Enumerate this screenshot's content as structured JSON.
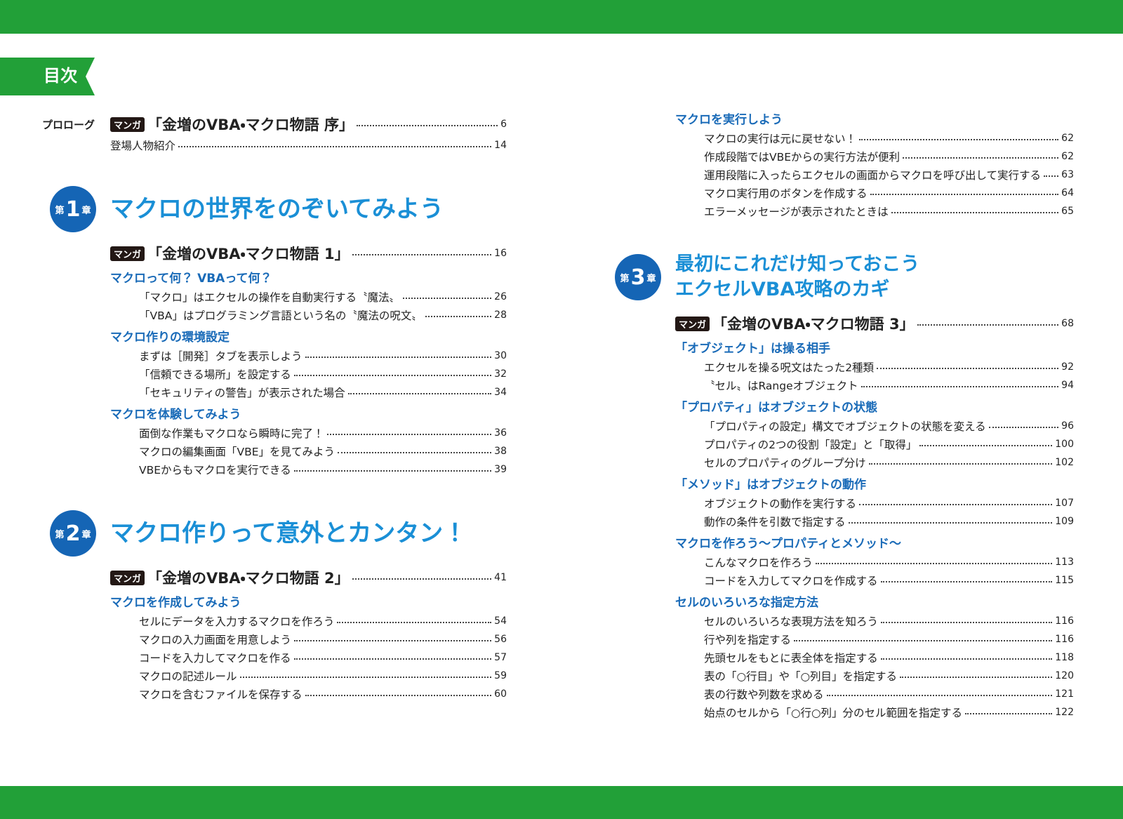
{
  "header": {
    "title": "目次"
  },
  "left_page": {
    "prologue": {
      "label": "プロローグ",
      "entries": [
        {
          "badge": "マンガ",
          "title": "「金増のVBA・マクロ物語 序」",
          "page": 6
        },
        {
          "title": "登場人物紹介",
          "page": 14
        }
      ]
    },
    "chapters": [
      {
        "prefix": "第",
        "number": "1",
        "suffix": "章",
        "title_lines": [
          "マクロの世界をのぞいてみよう"
        ],
        "manga": {
          "badge": "マンガ",
          "title": "「金増のVBA・マクロ物語 1」",
          "page": 16
        },
        "sections": [
          {
            "heading": "マクロって何？ VBAって何？",
            "entries": [
              {
                "title": "「マクロ」はエクセルの操作を自動実行する〝魔法〟",
                "page": 26
              },
              {
                "title": "「VBA」はプログラミング言語という名の〝魔法の呪文〟",
                "page": 28
              }
            ]
          },
          {
            "heading": "マクロ作りの環境設定",
            "entries": [
              {
                "title": "まずは［開発］タブを表示しよう",
                "page": 30
              },
              {
                "title": "「信頼できる場所」を設定する",
                "page": 32
              },
              {
                "title": "「セキュリティの警告」が表示された場合",
                "page": 34
              }
            ]
          },
          {
            "heading": "マクロを体験してみよう",
            "entries": [
              {
                "title": "面倒な作業もマクロなら瞬時に完了！",
                "page": 36
              },
              {
                "title": "マクロの編集画面「VBE」を見てみよう",
                "page": 38
              },
              {
                "title": "VBEからもマクロを実行できる",
                "page": 39
              }
            ]
          }
        ]
      },
      {
        "prefix": "第",
        "number": "2",
        "suffix": "章",
        "title_lines": [
          "マクロ作りって意外とカンタン！"
        ],
        "manga": {
          "badge": "マンガ",
          "title": "「金増のVBA・マクロ物語 2」",
          "page": 41
        },
        "sections": [
          {
            "heading": "マクロを作成してみよう",
            "entries": [
              {
                "title": "セルにデータを入力するマクロを作ろう",
                "page": 54
              },
              {
                "title": "マクロの入力画面を用意しよう",
                "page": 56
              },
              {
                "title": "コードを入力してマクロを作る",
                "page": 57
              },
              {
                "title": "マクロの記述ルール",
                "page": 59
              },
              {
                "title": "マクロを含むファイルを保存する",
                "page": 60
              }
            ]
          }
        ]
      }
    ]
  },
  "right_page": {
    "continued_sections": [
      {
        "heading": "マクロを実行しよう",
        "entries": [
          {
            "title": "マクロの実行は元に戻せない！",
            "page": 62
          },
          {
            "title": "作成段階ではVBEからの実行方法が便利",
            "page": 62
          },
          {
            "title": "運用段階に入ったらエクセルの画面からマクロを呼び出して実行する",
            "page": 63
          },
          {
            "title": "マクロ実行用のボタンを作成する",
            "page": 64
          },
          {
            "title": "エラーメッセージが表示されたときは",
            "page": 65
          }
        ]
      }
    ],
    "chapters": [
      {
        "prefix": "第",
        "number": "3",
        "suffix": "章",
        "title_lines": [
          "最初にこれだけ知っておこう",
          "エクセルVBA攻略のカギ"
        ],
        "manga": {
          "badge": "マンガ",
          "title": "「金増のVBA・マクロ物語 3」",
          "page": 68
        },
        "sections": [
          {
            "heading": "「オブジェクト」は操る相手",
            "entries": [
              {
                "title": "エクセルを操る呪文はたった2種類",
                "page": 92
              },
              {
                "title": "〝セル〟はRangeオブジェクト",
                "page": 94
              }
            ]
          },
          {
            "heading": "「プロパティ」はオブジェクトの状態",
            "entries": [
              {
                "title": "「プロパティの設定」構文でオブジェクトの状態を変える",
                "page": 96
              },
              {
                "title": "プロパティの2つの役割「設定」と「取得」",
                "page": 100
              },
              {
                "title": "セルのプロパティのグループ分け",
                "page": 102
              }
            ]
          },
          {
            "heading": "「メソッド」はオブジェクトの動作",
            "entries": [
              {
                "title": "オブジェクトの動作を実行する",
                "page": 107
              },
              {
                "title": "動作の条件を引数で指定する",
                "page": 109
              }
            ]
          },
          {
            "heading": "マクロを作ろう～プロパティとメソッド～",
            "entries": [
              {
                "title": "こんなマクロを作ろう",
                "page": 113
              },
              {
                "title": "コードを入力してマクロを作成する",
                "page": 115
              }
            ]
          },
          {
            "heading": "セルのいろいろな指定方法",
            "entries": [
              {
                "title": "セルのいろいろな表現方法を知ろう",
                "page": 116
              },
              {
                "title": "行や列を指定する",
                "page": 116
              },
              {
                "title": "先頭セルをもとに表全体を指定する",
                "page": 118
              },
              {
                "title": "表の「○行目」や「○列目」を指定する",
                "page": 120
              },
              {
                "title": "表の行数や列数を求める",
                "page": 121
              },
              {
                "title": "始点のセルから「○行○列」分のセル範囲を指定する",
                "page": 122
              }
            ]
          }
        ]
      }
    ]
  }
}
